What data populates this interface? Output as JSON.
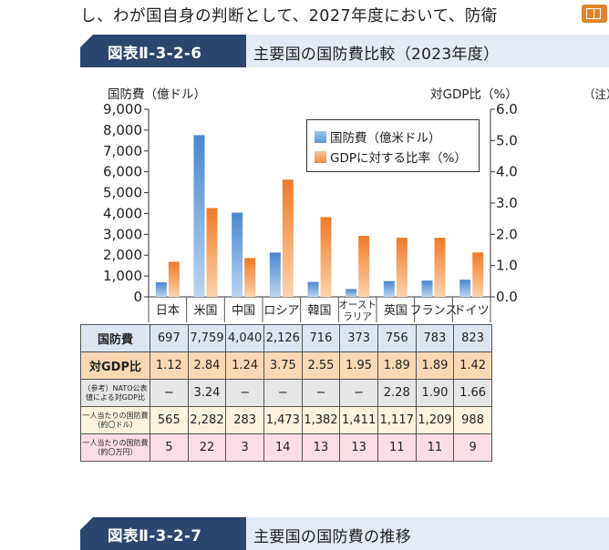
{
  "page": {
    "top_text": "し、わが国自身の判断として、2027年度において、防衛",
    "figure1": {
      "number": "図表Ⅱ-3-2-6",
      "title": "主要国の国防費比較（2023年度）"
    },
    "figure2": {
      "number": "図表Ⅱ-3-2-7",
      "title": "主要国の国防費の推移"
    },
    "note": "（注）",
    "book_icon": "book-icon"
  },
  "chart_data": {
    "type": "bar",
    "categories": [
      "日本",
      "米国",
      "中国",
      "ロシア",
      "韓国",
      "オーストラリア",
      "英国",
      "フランス",
      "ドイツ"
    ],
    "category_display": [
      "日本",
      "米国",
      "中国",
      "ロシア",
      "韓国",
      "オースト\nラリア",
      "英国",
      "フランス",
      "ドイツ"
    ],
    "left_axis": {
      "label": "国防費（億ドル）",
      "ticks": [
        "9,000",
        "8,000",
        "7,000",
        "6,000",
        "5,000",
        "4,000",
        "3,000",
        "2,000",
        "1,000",
        "0"
      ],
      "range": [
        0,
        9000
      ]
    },
    "right_axis": {
      "label": "対GDP比（%）",
      "ticks": [
        "6.0",
        "5.0",
        "4.0",
        "3.0",
        "2.0",
        "1.0",
        "0.0"
      ],
      "range": [
        0,
        6
      ]
    },
    "series": [
      {
        "name": "国防費（億米ドル）",
        "axis": "left",
        "color": "#5b9bd5",
        "values": [
          697,
          7759,
          4040,
          2126,
          716,
          373,
          756,
          783,
          823
        ]
      },
      {
        "name": "GDPに対する比率（%）",
        "axis": "right",
        "color": "#f08a3c",
        "values": [
          1.12,
          2.84,
          1.24,
          3.75,
          2.55,
          1.95,
          1.89,
          1.89,
          1.42
        ]
      }
    ],
    "legend_position": "top-right",
    "table": {
      "rows": [
        {
          "label": "国防費",
          "cells": [
            "697",
            "7,759",
            "4,040",
            "2,126",
            "716",
            "373",
            "756",
            "783",
            "823"
          ]
        },
        {
          "label": "対GDP比",
          "cells": [
            "1.12",
            "2.84",
            "1.24",
            "3.75",
            "2.55",
            "1.95",
            "1.89",
            "1.89",
            "1.42"
          ]
        },
        {
          "label": "（参考）NATO公表値による対GDP比",
          "cells": [
            "−",
            "3.24",
            "−",
            "−",
            "−",
            "−",
            "2.28",
            "1.90",
            "1.66"
          ]
        },
        {
          "label": "一人当たりの国防費（約〇ドル）",
          "cells": [
            "565",
            "2,282",
            "283",
            "1,473",
            "1,382",
            "1,411",
            "1,117",
            "1,209",
            "988"
          ]
        },
        {
          "label": "一人当たりの国防費（約〇万円）",
          "cells": [
            "5",
            "22",
            "3",
            "14",
            "13",
            "13",
            "11",
            "11",
            "9"
          ]
        }
      ]
    }
  }
}
